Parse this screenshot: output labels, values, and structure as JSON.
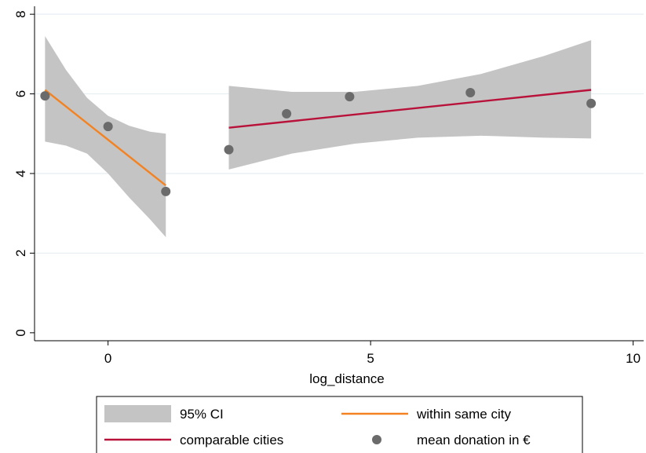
{
  "chart_data": {
    "type": "scatter",
    "xlabel": "log_distance",
    "ylabel": "",
    "xlim": [
      -1.4,
      10.2
    ],
    "ylim": [
      -0.2,
      8.2
    ],
    "xticks": [
      0,
      5,
      10
    ],
    "yticks": [
      0,
      2,
      4,
      6,
      8
    ],
    "grid": "horizontal",
    "legend_position": "bottom",
    "points": {
      "name": "mean donation in €",
      "color": "#6b6b6b",
      "x": [
        -1.2,
        0.0,
        1.1,
        2.3,
        3.4,
        4.6,
        6.9,
        9.2
      ],
      "y": [
        5.95,
        5.18,
        3.55,
        4.6,
        5.5,
        5.93,
        6.03,
        5.76
      ]
    },
    "fits": [
      {
        "name": "within same city",
        "color": "#f58220",
        "x": [
          -1.2,
          1.1
        ],
        "y": [
          6.1,
          3.7
        ],
        "ci_x": [
          -1.2,
          -0.8,
          -0.4,
          0.0,
          0.4,
          0.8,
          1.1
        ],
        "ci_upper": [
          7.45,
          6.6,
          5.9,
          5.45,
          5.2,
          5.05,
          5.0
        ],
        "ci_lower": [
          4.8,
          4.7,
          4.5,
          4.0,
          3.4,
          2.85,
          2.4
        ]
      },
      {
        "name": "comparable cities",
        "color": "#b8123a",
        "x": [
          2.3,
          9.2
        ],
        "y": [
          5.15,
          6.1
        ],
        "ci_x": [
          2.3,
          3.5,
          4.7,
          5.9,
          7.1,
          8.3,
          9.2
        ],
        "ci_upper": [
          6.2,
          6.05,
          6.05,
          6.2,
          6.5,
          6.95,
          7.35
        ],
        "ci_lower": [
          4.1,
          4.5,
          4.75,
          4.9,
          4.95,
          4.9,
          4.88
        ]
      }
    ],
    "ci_color": "#c4c4c4",
    "legend": [
      {
        "label": "95% CI",
        "kind": "area",
        "color": "#c4c4c4"
      },
      {
        "label": "within same city",
        "kind": "line",
        "color": "#f58220"
      },
      {
        "label": "comparable cities",
        "kind": "line",
        "color": "#b8123a"
      },
      {
        "label": "mean donation in €",
        "kind": "marker",
        "color": "#6b6b6b"
      }
    ]
  }
}
